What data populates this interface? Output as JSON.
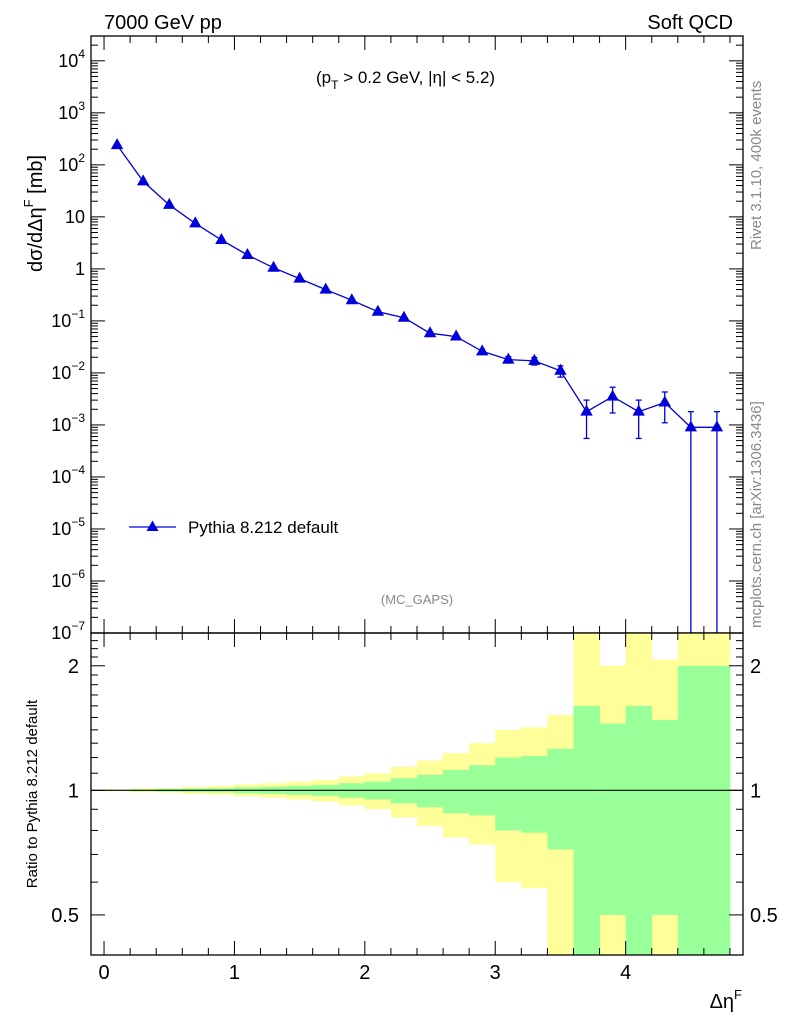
{
  "header": {
    "left_label": "7000 GeV pp",
    "right_label": "Soft QCD"
  },
  "side_labels": {
    "rivet": "Rivet 3.1.10,  400k events",
    "mcplots": "mcplots.cern.ch [arXiv:1306.3436]"
  },
  "watermark": "(MC_GAPS)",
  "cut_label": {
    "prefix": "(p",
    "sub": "T",
    "rest": " > 0.2 GeV, |η| < 5.2)"
  },
  "colors": {
    "series": "#0000dd",
    "band_inner": "#99ff99",
    "band_outer": "#ffff99",
    "side_text": "#888888"
  },
  "chart_data": [
    {
      "type": "line",
      "title": "",
      "xlabel": "Δη",
      "xlabel_sup": "F",
      "ylabel": "dσ/dΔη",
      "ylabel_sup": "F",
      "ylabel_unit": " [mb]",
      "yscale": "log",
      "xlim": [
        -0.1,
        4.9
      ],
      "ylim": [
        1e-07,
        30000.0
      ],
      "y_ticks": [
        {
          "value": 10000,
          "base": "10",
          "exp": "4"
        },
        {
          "value": 1000,
          "base": "10",
          "exp": "3"
        },
        {
          "value": 100,
          "base": "10",
          "exp": "2"
        },
        {
          "value": 10,
          "base": "10",
          "exp": ""
        },
        {
          "value": 1,
          "base": "1",
          "exp": ""
        },
        {
          "value": 0.1,
          "base": "10",
          "exp": "−1"
        },
        {
          "value": 0.01,
          "base": "10",
          "exp": "−2"
        },
        {
          "value": 0.001,
          "base": "10",
          "exp": "−3"
        },
        {
          "value": 0.0001,
          "base": "10",
          "exp": "−4"
        },
        {
          "value": 1e-05,
          "base": "10",
          "exp": "−5"
        },
        {
          "value": 1e-06,
          "base": "10",
          "exp": "−6"
        },
        {
          "value": 1e-07,
          "base": "10",
          "exp": "−7"
        }
      ],
      "legend_position": "lower-left",
      "series": [
        {
          "name": "Pythia 8.212 default",
          "marker": "triangle",
          "x": [
            0.1,
            0.3,
            0.5,
            0.7,
            0.9,
            1.1,
            1.3,
            1.5,
            1.7,
            1.9,
            2.1,
            2.3,
            2.5,
            2.7,
            2.9,
            3.1,
            3.3,
            3.5,
            3.7,
            3.9,
            4.1,
            4.3,
            4.5,
            4.7
          ],
          "y": [
            240,
            48,
            17,
            7.5,
            3.6,
            1.85,
            1.05,
            0.65,
            0.4,
            0.25,
            0.15,
            0.115,
            0.058,
            0.05,
            0.026,
            0.018,
            0.017,
            0.011,
            0.0018,
            0.0035,
            0.0018,
            0.0027,
            0.0009,
            0.0009
          ],
          "y_low": [
            240,
            48,
            17,
            7.5,
            3.6,
            1.85,
            1.05,
            0.65,
            0.4,
            0.25,
            0.15,
            0.115,
            0.058,
            0.05,
            0.026,
            0.0155,
            0.0142,
            0.0083,
            0.00055,
            0.0017,
            0.00055,
            0.0011,
            1e-08,
            1e-08
          ],
          "y_high": [
            240,
            48,
            17,
            7.5,
            3.6,
            1.85,
            1.05,
            0.65,
            0.4,
            0.25,
            0.15,
            0.115,
            0.058,
            0.05,
            0.026,
            0.0205,
            0.0198,
            0.0137,
            0.003,
            0.0053,
            0.003,
            0.0043,
            0.0018,
            0.0018
          ]
        }
      ]
    },
    {
      "type": "area",
      "title": "",
      "xlabel": "Δη",
      "xlabel_sup": "F",
      "ylabel": "Ratio to Pythia 8.212 default",
      "yscale": "log",
      "xlim": [
        -0.1,
        4.9
      ],
      "ylim": [
        0.4,
        2.4
      ],
      "x_ticks": [
        0,
        1,
        2,
        3,
        4
      ],
      "y_ticks": [
        0.5,
        1,
        2
      ],
      "reference_line": 1,
      "bins": [
        0.0,
        0.2,
        0.4,
        0.6,
        0.8,
        1.0,
        1.2,
        1.4,
        1.6,
        1.8,
        2.0,
        2.2,
        2.4,
        2.6,
        2.8,
        3.0,
        3.2,
        3.4,
        3.6,
        3.8,
        4.0,
        4.2,
        4.4,
        4.6,
        4.8
      ],
      "series": [
        {
          "band": "outer",
          "high": [
            1.005,
            1.01,
            1.013,
            1.02,
            1.025,
            1.033,
            1.04,
            1.05,
            1.06,
            1.08,
            1.1,
            1.14,
            1.18,
            1.23,
            1.3,
            1.4,
            1.42,
            1.52,
            2.45,
            2.0,
            2.45,
            2.07,
            2.45,
            2.45
          ],
          "low": [
            0.995,
            0.99,
            0.987,
            0.98,
            0.975,
            0.967,
            0.96,
            0.95,
            0.94,
            0.92,
            0.9,
            0.86,
            0.82,
            0.77,
            0.74,
            0.6,
            0.58,
            0.35,
            0.35,
            0.35,
            0.35,
            0.35,
            0.35,
            0.35
          ]
        },
        {
          "band": "inner",
          "high": [
            1.003,
            1.005,
            1.008,
            1.01,
            1.012,
            1.017,
            1.02,
            1.025,
            1.03,
            1.04,
            1.05,
            1.07,
            1.09,
            1.12,
            1.15,
            1.2,
            1.21,
            1.26,
            1.6,
            1.45,
            1.6,
            1.48,
            2.0,
            2.0
          ],
          "low": [
            0.997,
            0.995,
            0.992,
            0.99,
            0.988,
            0.983,
            0.98,
            0.975,
            0.97,
            0.96,
            0.95,
            0.93,
            0.91,
            0.88,
            0.87,
            0.8,
            0.79,
            0.72,
            0.35,
            0.5,
            0.35,
            0.5,
            0.35,
            0.35
          ]
        }
      ]
    }
  ]
}
